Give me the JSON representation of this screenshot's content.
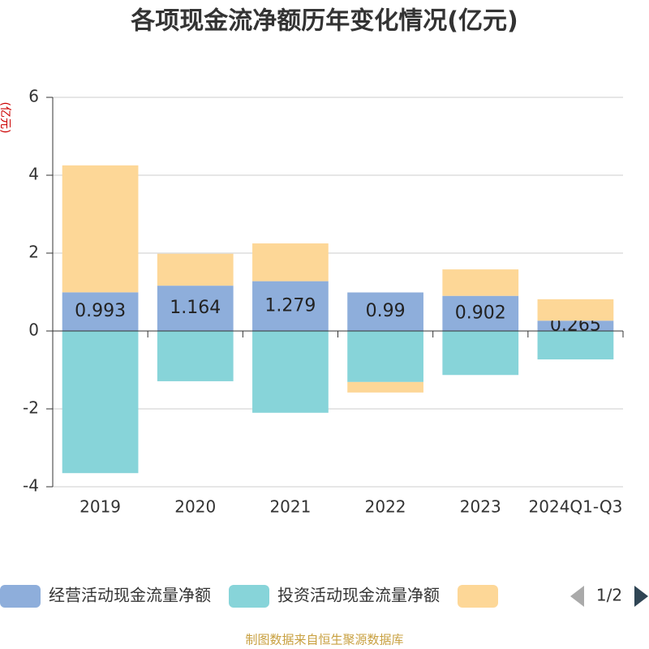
{
  "chart_data": {
    "type": "bar",
    "stacked": true,
    "title": "各项现金流净额历年变化情况(亿元)",
    "y_label": "(亿元)",
    "categories": [
      "2019",
      "2020",
      "2021",
      "2022",
      "2023",
      "2024Q1-Q3"
    ],
    "series": [
      {
        "name": "经营活动现金流量净额",
        "color": "#8eaedb",
        "values": [
          0.993,
          1.164,
          1.279,
          0.99,
          0.902,
          0.265
        ],
        "show_labels": true
      },
      {
        "name": "投资活动现金流量净额",
        "color": "#87d4d9",
        "values": [
          -3.65,
          -1.29,
          -2.1,
          -1.31,
          -1.13,
          -0.73
        ]
      },
      {
        "color": "#fdd797",
        "values": [
          3.26,
          0.82,
          0.97,
          -0.27,
          0.68,
          0.55
        ]
      }
    ],
    "ylim": [
      -4,
      6
    ],
    "yticks": [
      -4,
      -2,
      0,
      2,
      4,
      6
    ],
    "grid": true,
    "legend_page": "1/2",
    "source": "制图数据来自恒生聚源数据库"
  }
}
